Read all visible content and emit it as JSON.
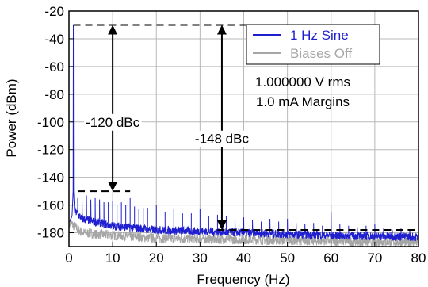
{
  "chart_data": {
    "type": "line",
    "title": "",
    "xlabel": "Frequency (Hz)",
    "ylabel": "Power (dBm)",
    "xlim": [
      0,
      80
    ],
    "ylim": [
      -190,
      -20
    ],
    "xticks": [
      0,
      10,
      20,
      30,
      40,
      50,
      60,
      70,
      80
    ],
    "yticks": [
      -20,
      -40,
      -60,
      -80,
      -100,
      -120,
      -140,
      -160,
      -180
    ],
    "grid": true,
    "legend_position": "top-right",
    "series": [
      {
        "name": "1 Hz Sine",
        "color": "#1f1fcf",
        "fundamental": {
          "x": 1,
          "y": -30
        },
        "noise_floor": [
          [
            1,
            -163
          ],
          [
            3,
            -170
          ],
          [
            10,
            -175
          ],
          [
            20,
            -178
          ],
          [
            40,
            -180
          ],
          [
            60,
            -182
          ],
          [
            80,
            -183
          ]
        ],
        "spurs": [
          [
            2,
            -155
          ],
          [
            3,
            -157
          ],
          [
            4,
            -153
          ],
          [
            5,
            -156
          ],
          [
            6,
            -155
          ],
          [
            7,
            -156
          ],
          [
            8,
            -158
          ],
          [
            9,
            -158
          ],
          [
            10,
            -157
          ],
          [
            11,
            -160
          ],
          [
            12,
            -158
          ],
          [
            13,
            -160
          ],
          [
            14,
            -155
          ],
          [
            15,
            -161
          ],
          [
            16,
            -163
          ],
          [
            17,
            -162
          ],
          [
            18,
            -162
          ],
          [
            20,
            -160
          ],
          [
            22,
            -165
          ],
          [
            24,
            -163
          ],
          [
            26,
            -166
          ],
          [
            28,
            -166
          ],
          [
            30,
            -163
          ],
          [
            32,
            -168
          ],
          [
            34,
            -167
          ],
          [
            36,
            -168
          ],
          [
            38,
            -170
          ],
          [
            40,
            -169
          ],
          [
            42,
            -171
          ],
          [
            44,
            -172
          ],
          [
            46,
            -170
          ],
          [
            48,
            -172
          ],
          [
            50,
            -170
          ],
          [
            52,
            -173
          ],
          [
            54,
            -174
          ],
          [
            56,
            -173
          ],
          [
            58,
            -175
          ],
          [
            60,
            -165
          ],
          [
            62,
            -174
          ],
          [
            64,
            -175
          ],
          [
            66,
            -176
          ],
          [
            68,
            -175
          ],
          [
            70,
            -174
          ],
          [
            72,
            -177
          ],
          [
            74,
            -178
          ],
          [
            76,
            -177
          ],
          [
            78,
            -178
          ]
        ]
      },
      {
        "name": "Biases Off",
        "color": "#a6a6a6",
        "noise_floor": [
          [
            0,
            -172
          ],
          [
            3,
            -180
          ],
          [
            10,
            -182
          ],
          [
            20,
            -184
          ],
          [
            40,
            -185
          ],
          [
            60,
            -186
          ],
          [
            80,
            -187
          ]
        ],
        "spurs": [
          [
            60,
            -160
          ]
        ]
      }
    ],
    "annotations": {
      "info_line1": "1.000000 V rms",
      "info_line2": "1.0 mA Margins",
      "dbc_near": {
        "label": "-120 dBc",
        "top": -30,
        "bottom": -150,
        "x": 10,
        "dash_x": [
          2,
          14
        ]
      },
      "dbc_far": {
        "label": "-148 dBc",
        "top": -30,
        "bottom": -178,
        "x": 35,
        "dash_x": [
          1,
          64
        ]
      }
    }
  }
}
